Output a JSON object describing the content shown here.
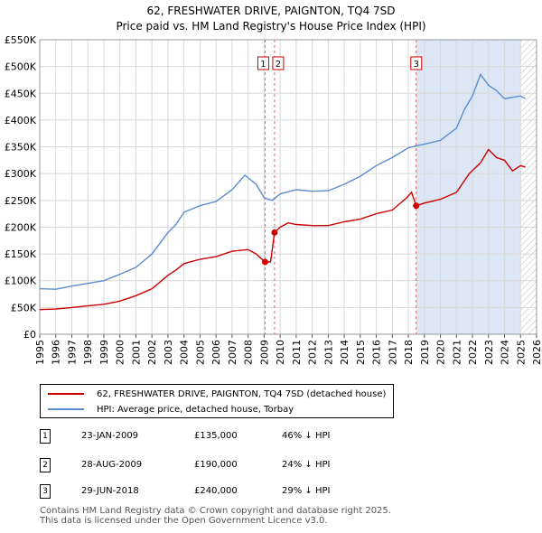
{
  "chart_data": {
    "type": "line",
    "title": "62, FRESHWATER DRIVE, PAIGNTON, TQ4 7SD",
    "subtitle": "Price paid vs. HM Land Registry's House Price Index (HPI)",
    "xlabel": "",
    "ylabel": "",
    "xlim": [
      1995,
      2026
    ],
    "ylim": [
      0,
      550000
    ],
    "x_ticks": [
      "1995",
      "1996",
      "1997",
      "1998",
      "1999",
      "2000",
      "2001",
      "2002",
      "2003",
      "2004",
      "2005",
      "2006",
      "2007",
      "2008",
      "2009",
      "2010",
      "2011",
      "2012",
      "2013",
      "2014",
      "2015",
      "2016",
      "2017",
      "2018",
      "2019",
      "2020",
      "2021",
      "2022",
      "2023",
      "2024",
      "2025",
      "2026"
    ],
    "y_ticks": [
      {
        "value": 0,
        "label": "£0"
      },
      {
        "value": 50000,
        "label": "£50K"
      },
      {
        "value": 100000,
        "label": "£100K"
      },
      {
        "value": 150000,
        "label": "£150K"
      },
      {
        "value": 200000,
        "label": "£200K"
      },
      {
        "value": 250000,
        "label": "£250K"
      },
      {
        "value": 300000,
        "label": "£300K"
      },
      {
        "value": 350000,
        "label": "£350K"
      },
      {
        "value": 400000,
        "label": "£400K"
      },
      {
        "value": 450000,
        "label": "£450K"
      },
      {
        "value": 500000,
        "label": "£500K"
      },
      {
        "value": 550000,
        "label": "£550K"
      }
    ],
    "grid": true,
    "shaded_from": 2018.5,
    "hatched_from": 2025.0,
    "series": [
      {
        "name": "62, FRESHWATER DRIVE, PAIGNTON, TQ4 7SD (detached house)",
        "color": "#cc0000",
        "points": [
          [
            1995,
            46000
          ],
          [
            1996,
            47000
          ],
          [
            1997,
            50000
          ],
          [
            1998,
            53000
          ],
          [
            1999,
            56000
          ],
          [
            2000,
            62000
          ],
          [
            2001,
            72000
          ],
          [
            2002,
            85000
          ],
          [
            2003,
            110000
          ],
          [
            2003.5,
            120000
          ],
          [
            2004,
            132000
          ],
          [
            2005,
            140000
          ],
          [
            2006,
            145000
          ],
          [
            2007,
            155000
          ],
          [
            2008,
            158000
          ],
          [
            2008.5,
            150000
          ],
          [
            2009.06,
            135000
          ],
          [
            2009.4,
            135000
          ],
          [
            2009.65,
            190000
          ],
          [
            2010,
            200000
          ],
          [
            2010.5,
            208000
          ],
          [
            2011,
            205000
          ],
          [
            2012,
            203000
          ],
          [
            2013,
            203000
          ],
          [
            2014,
            210000
          ],
          [
            2015,
            215000
          ],
          [
            2016,
            225000
          ],
          [
            2017,
            232000
          ],
          [
            2017.9,
            255000
          ],
          [
            2018.2,
            265000
          ],
          [
            2018.49,
            240000
          ],
          [
            2019,
            245000
          ],
          [
            2020,
            252000
          ],
          [
            2021,
            265000
          ],
          [
            2021.8,
            300000
          ],
          [
            2022.5,
            320000
          ],
          [
            2023,
            345000
          ],
          [
            2023.5,
            330000
          ],
          [
            2024,
            325000
          ],
          [
            2024.5,
            305000
          ],
          [
            2025,
            315000
          ],
          [
            2025.3,
            312000
          ]
        ]
      },
      {
        "name": "HPI: Average price, detached house, Torbay",
        "color": "#5b8ccf",
        "points": [
          [
            1995,
            85000
          ],
          [
            1996,
            84000
          ],
          [
            1997,
            90000
          ],
          [
            1998,
            95000
          ],
          [
            1999,
            100000
          ],
          [
            2000,
            112000
          ],
          [
            2001,
            125000
          ],
          [
            2002,
            150000
          ],
          [
            2003,
            190000
          ],
          [
            2003.5,
            205000
          ],
          [
            2004,
            228000
          ],
          [
            2005,
            240000
          ],
          [
            2006,
            248000
          ],
          [
            2007,
            270000
          ],
          [
            2007.8,
            297000
          ],
          [
            2008.5,
            280000
          ],
          [
            2009,
            255000
          ],
          [
            2009.5,
            250000
          ],
          [
            2010,
            262000
          ],
          [
            2011,
            270000
          ],
          [
            2012,
            267000
          ],
          [
            2013,
            268000
          ],
          [
            2014,
            280000
          ],
          [
            2015,
            295000
          ],
          [
            2016,
            315000
          ],
          [
            2017,
            330000
          ],
          [
            2018,
            348000
          ],
          [
            2018.5,
            352000
          ],
          [
            2019,
            355000
          ],
          [
            2020,
            362000
          ],
          [
            2021,
            385000
          ],
          [
            2021.5,
            420000
          ],
          [
            2022,
            445000
          ],
          [
            2022.5,
            485000
          ],
          [
            2023,
            465000
          ],
          [
            2023.5,
            455000
          ],
          [
            2024,
            440000
          ],
          [
            2025,
            445000
          ],
          [
            2025.3,
            440000
          ]
        ]
      }
    ],
    "markers": [
      {
        "id": "1",
        "year": 2009.06,
        "value": 135000
      },
      {
        "id": "2",
        "year": 2009.65,
        "value": 190000
      },
      {
        "id": "3",
        "year": 2018.49,
        "value": 240000
      }
    ],
    "annotations": [
      {
        "label": "1",
        "year": 2009.06
      },
      {
        "label": "2",
        "year": 2009.65
      },
      {
        "label": "3",
        "year": 2018.49
      }
    ]
  },
  "legend": {
    "property_label": "62, FRESHWATER DRIVE, PAIGNTON, TQ4 7SD (detached house)",
    "hpi_label": "HPI: Average price, detached house, Torbay",
    "property_color": "#cc0000",
    "hpi_color": "#5b8ccf"
  },
  "transactions": [
    {
      "num": "1",
      "date": "23-JAN-2009",
      "price": "£135,000",
      "hpi": "46% ↓ HPI"
    },
    {
      "num": "2",
      "date": "28-AUG-2009",
      "price": "£190,000",
      "hpi": "24% ↓ HPI"
    },
    {
      "num": "3",
      "date": "29-JUN-2018",
      "price": "£240,000",
      "hpi": "29% ↓ HPI"
    }
  ],
  "footer": {
    "line1": "Contains HM Land Registry data © Crown copyright and database right 2025.",
    "line2": "This data is licensed under the Open Government Licence v3.0."
  }
}
